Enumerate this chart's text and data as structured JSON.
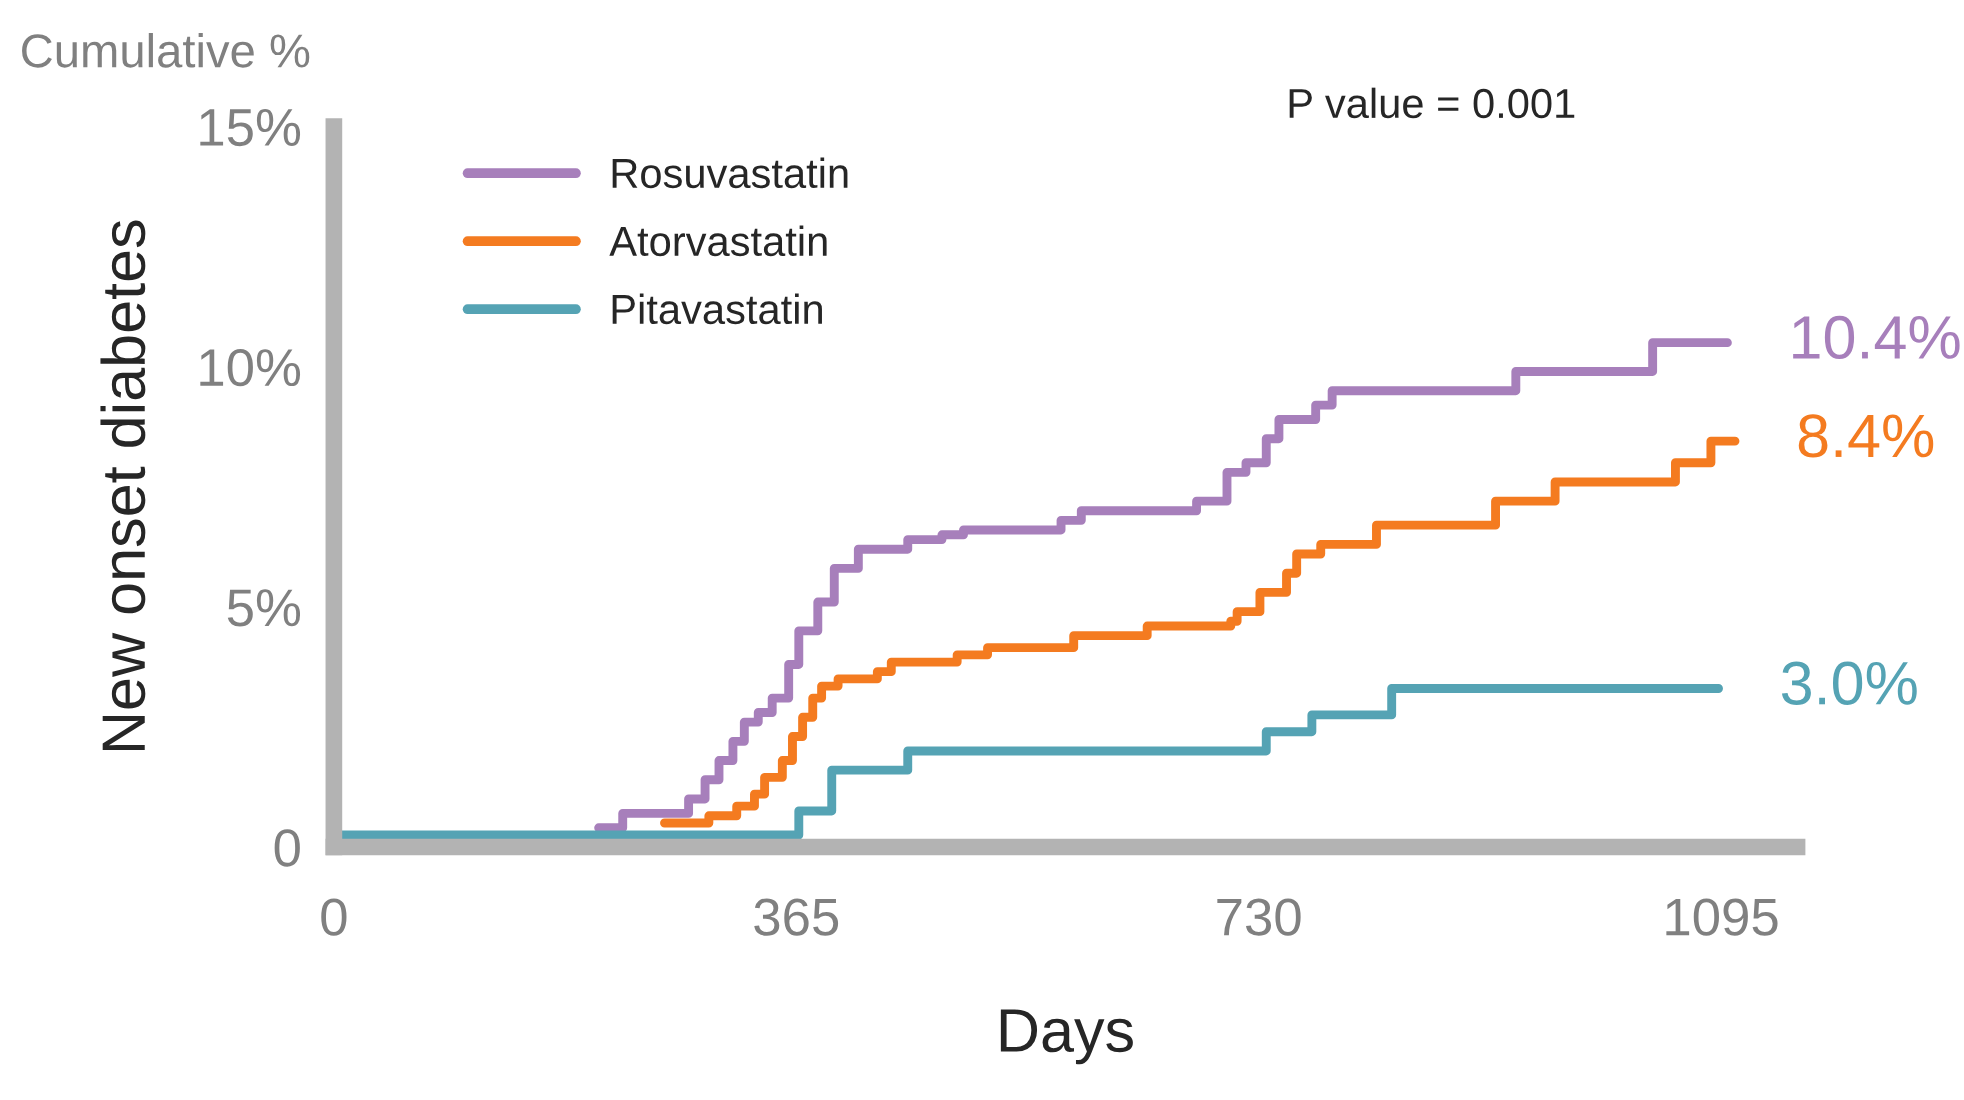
{
  "chart_data": {
    "type": "step",
    "title": "Cumulative %",
    "xlabel": "Days",
    "ylabel": "New onset diabetes",
    "xlim": [
      0,
      1155
    ],
    "ylim": [
      0,
      15
    ],
    "xticks": [
      0,
      365,
      730,
      1095
    ],
    "yticks": [
      0,
      {
        "value": 5,
        "label": "5%"
      },
      {
        "value": 10,
        "label": "10%"
      },
      {
        "value": 15,
        "label": "15%"
      }
    ],
    "grid": false,
    "legend": "top left",
    "marker": "none",
    "line_style": "solid",
    "series": [
      {
        "name": "Rosuvastatin",
        "color": "#a77fbb",
        "x": [
          209,
          228,
          280,
          293,
          304,
          315,
          324,
          335,
          346,
          359,
          367,
          382,
          395,
          414,
          453,
          480,
          497,
          574,
          590,
          681,
          705,
          720,
          736,
          746,
          775,
          788,
          933,
          1041,
          1100
        ],
        "values": [
          0.4,
          0.7,
          1.0,
          1.4,
          1.8,
          2.2,
          2.6,
          2.8,
          3.1,
          3.8,
          4.5,
          5.1,
          5.8,
          6.2,
          6.4,
          6.5,
          6.6,
          6.8,
          7.0,
          7.2,
          7.8,
          8.0,
          8.5,
          8.9,
          9.2,
          9.5,
          9.9,
          10.5,
          10.5
        ]
      },
      {
        "name": "Atorvastatin",
        "color": "#f47b20",
        "x": [
          261,
          296,
          318,
          332,
          340,
          354,
          362,
          370,
          378,
          385,
          398,
          429,
          440,
          492,
          516,
          584,
          642,
          708,
          713,
          731,
          752,
          760,
          779,
          823,
          917,
          964,
          1059,
          1087,
          1106
        ],
        "values": [
          0.5,
          0.65,
          0.85,
          1.1,
          1.45,
          1.8,
          2.3,
          2.7,
          3.1,
          3.35,
          3.5,
          3.65,
          3.85,
          4.0,
          4.15,
          4.4,
          4.6,
          4.7,
          4.9,
          5.3,
          5.7,
          6.1,
          6.3,
          6.7,
          7.2,
          7.6,
          8.0,
          8.45,
          8.45
        ]
      },
      {
        "name": "Pitavastatin",
        "color": "#55a3b4",
        "x": [
          0,
          367,
          393,
          453,
          736,
          772,
          835,
          1093
        ],
        "values": [
          0.25,
          0.75,
          1.6,
          2.0,
          2.4,
          2.75,
          3.3,
          3.3
        ]
      }
    ],
    "annotations": [
      {
        "text": "10.4%",
        "x": 1100,
        "y": 10.5
      },
      {
        "text": "8.4%",
        "x": 1106,
        "y": 8.45
      },
      {
        "text": "3.0%",
        "x": 1093,
        "y": 3.3
      },
      "P value = 0.001"
    ]
  }
}
